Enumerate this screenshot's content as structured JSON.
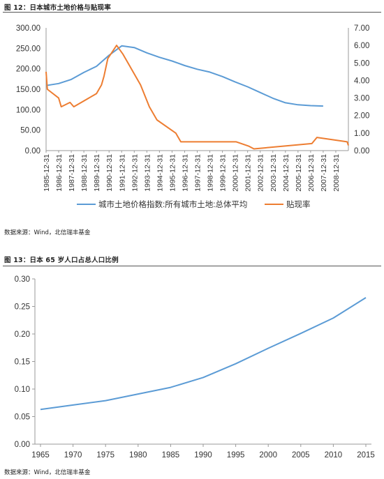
{
  "figure1": {
    "title": "图 12：日本城市土地价格与贴现率",
    "source": "数据来源：Wind，北信瑞丰基金",
    "chart_data": {
      "type": "line",
      "x": [
        "1985-12-31",
        "1986-12-31",
        "1987-12-31",
        "1988-12-31",
        "1989-12-31",
        "1990-12-31",
        "1991-12-31",
        "1992-12-31",
        "1993-12-31",
        "1994-12-31",
        "1995-12-31",
        "1996-12-31",
        "1997-12-31",
        "1998-12-31",
        "1999-12-31",
        "2000-12-31",
        "2001-12-31",
        "2002-12-31",
        "2003-12-31",
        "2004-12-31",
        "2005-12-31",
        "2006-12-31",
        "2007-12-31",
        "2008-12-31"
      ],
      "x_tick_labels": [
        "1985-12-31",
        "1986-12-31",
        "1987-12-31",
        "1988-12-31",
        "1989-12-31",
        "1990-12-31",
        "1991-12-31",
        "1992-12-31",
        "1993-12-31",
        "1994-12-31",
        "1995-12-31",
        "1996-12-31",
        "1997-12-31",
        "1998-12-31",
        "1999-12-31",
        "2000-12-31",
        "2001-12-31",
        "2002-12-31",
        "2003-12-31",
        "2004-12-31",
        "2005-12-31",
        "2006-12-31",
        "2007-12-31",
        "2008-12-31"
      ],
      "y_left": {
        "ylim": [
          0,
          300
        ],
        "ticks": [
          "0.00",
          "50.00",
          "100.00",
          "150.00",
          "200.00",
          "250.00",
          "300.00"
        ]
      },
      "y_right": {
        "ylim": [
          0,
          7
        ],
        "ticks": [
          "0.00",
          "1.00",
          "2.00",
          "3.00",
          "4.00",
          "5.00",
          "6.00",
          "7.00"
        ]
      },
      "series": [
        {
          "name": "城市土地价格指数:所有城市土地:总体平均",
          "axis": "left",
          "color": "#5b9bd5",
          "x": [
            1985.0,
            1986.0,
            1987.0,
            1988.0,
            1989.0,
            1990.0,
            1991.0,
            1992.0,
            1993.0,
            1994.0,
            1995.0,
            1996.0,
            1997.0,
            1998.0,
            1999.0,
            2000.0,
            2001.0,
            2002.0,
            2003.0,
            2004.0,
            2005.0,
            2006.0,
            2007.0
          ],
          "values": [
            159,
            164,
            174,
            191,
            206,
            233,
            256,
            252,
            239,
            228,
            219,
            208,
            199,
            192,
            181,
            168,
            156,
            142,
            128,
            117,
            112,
            110,
            109
          ]
        },
        {
          "name": "贴现率",
          "axis": "right",
          "color": "#ed7d31",
          "x": [
            1985.0,
            1985.1,
            1986.0,
            1986.2,
            1986.9,
            1987.2,
            1989.0,
            1989.4,
            1989.6,
            1989.9,
            1990.6,
            1991.1,
            1991.5,
            1991.9,
            1992.5,
            1993.2,
            1993.8,
            1995.3,
            1995.7,
            2000.1,
            2001.1,
            2001.5,
            2006.1,
            2006.5,
            2008.9,
            2009.0
          ],
          "values": [
            4.5,
            3.5,
            3.0,
            2.5,
            2.75,
            2.5,
            3.25,
            3.75,
            4.25,
            5.25,
            6.0,
            5.5,
            5.0,
            4.5,
            3.75,
            2.5,
            1.75,
            1.0,
            0.5,
            0.5,
            0.25,
            0.1,
            0.4,
            0.75,
            0.5,
            0.3
          ]
        }
      ],
      "legend": "bottom",
      "grid": false
    }
  },
  "figure2": {
    "title": "图 13：日本 65 岁人口占总人口比例",
    "source": "数据来源：Wind，北信瑞丰基金",
    "chart_data": {
      "type": "line",
      "x": [
        1965,
        1970,
        1975,
        1980,
        1985,
        1990,
        1995,
        2000,
        2005,
        2010,
        2015
      ],
      "x_tick_labels": [
        "1965",
        "1970",
        "1975",
        "1980",
        "1985",
        "1990",
        "1995",
        "2000",
        "2005",
        "2010",
        "2015"
      ],
      "ylim": [
        0,
        0.3
      ],
      "y_ticks": [
        "0.00",
        "0.05",
        "0.10",
        "0.15",
        "0.20",
        "0.25",
        "0.30"
      ],
      "series": [
        {
          "color": "#5b9bd5",
          "values": [
            0.063,
            0.071,
            0.079,
            0.091,
            0.103,
            0.121,
            0.146,
            0.174,
            0.201,
            0.229,
            0.266
          ]
        }
      ],
      "legend": "none",
      "grid": false
    }
  }
}
